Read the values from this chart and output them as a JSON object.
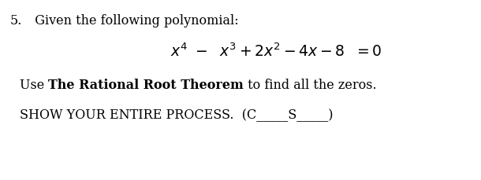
{
  "background_color": "#ffffff",
  "text_color": "#000000",
  "font_size": 11.5,
  "font_size_eq": 13.5,
  "font_family": "DejaVu Serif",
  "line1_num": "5.",
  "line1_text": "  Given the following polynomial:",
  "line3_pre": "Use ",
  "line3_bold": "The Rational Root Theorem",
  "line3_post": " to find all the zeros.",
  "line4": "SHOW YOUR ENTIRE PROCESS.  (C_____S_____)"
}
